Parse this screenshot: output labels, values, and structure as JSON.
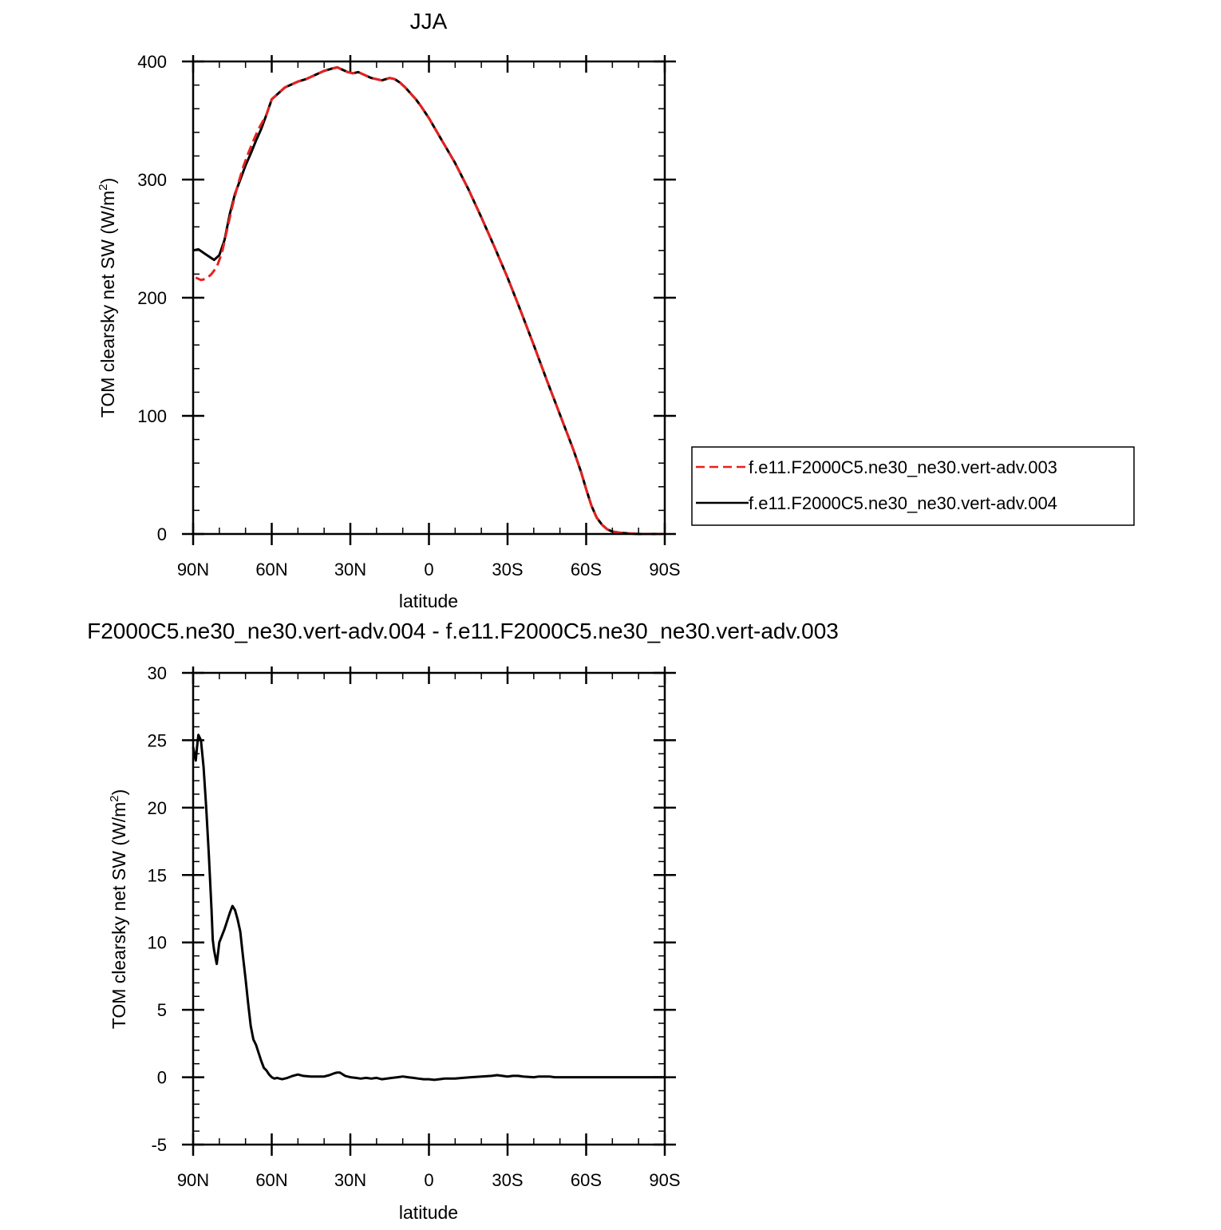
{
  "chart_data": [
    {
      "type": "line",
      "title": "JJA",
      "xlabel": "latitude",
      "ylabel_main": "TOM clearsky net SW (W/m",
      "ylabel_sup": "2",
      "ylabel_close": ")",
      "xlim": [
        90,
        -90
      ],
      "ylim": [
        0,
        400
      ],
      "x_ticks": [
        90,
        60,
        30,
        0,
        -30,
        -60,
        -90
      ],
      "x_tick_labels": [
        "90N",
        "60N",
        "30N",
        "0",
        "30S",
        "60S",
        "90S"
      ],
      "y_ticks": [
        0,
        100,
        200,
        300,
        400
      ],
      "y_tick_labels": [
        "0",
        "100",
        "200",
        "300",
        "400"
      ],
      "grid": false,
      "legend_position": "right",
      "series": [
        {
          "name": "f.e11.F2000C5.ne30_ne30.vert-adv.003",
          "color": "#e8201e",
          "dash": "dashed",
          "x": [
            89,
            87,
            85,
            83,
            81,
            79,
            77,
            75,
            73,
            71,
            69,
            67,
            65,
            62,
            60,
            57,
            55,
            52,
            50,
            47,
            45,
            42,
            40,
            37,
            35,
            33,
            31,
            29,
            27,
            25,
            22,
            20,
            18,
            15,
            13,
            11,
            9,
            7,
            5,
            3,
            0,
            -5,
            -10,
            -15,
            -20,
            -25,
            -30,
            -35,
            -40,
            -45,
            -50,
            -55,
            -58,
            -60,
            -62,
            -64,
            -66,
            -68,
            -70,
            -73,
            -76,
            -80,
            -85,
            -89
          ],
          "y": [
            217,
            215,
            216,
            220,
            226,
            238,
            258,
            278,
            295,
            310,
            322,
            333,
            343,
            355,
            368,
            374,
            378,
            381,
            383,
            385,
            387,
            390,
            392,
            394,
            395,
            393,
            391,
            390,
            391,
            389,
            386,
            385,
            384,
            386,
            385,
            382,
            378,
            373,
            368,
            362,
            352,
            333,
            314,
            292,
            268,
            243,
            217,
            189,
            160,
            130,
            101,
            72,
            53,
            38,
            24,
            14,
            8,
            4,
            2,
            1,
            0.5,
            0,
            0,
            0
          ]
        },
        {
          "name": "f.e11.F2000C5.ne30_ne30.vert-adv.004",
          "color": "#000000",
          "dash": "solid",
          "x": [
            90,
            88,
            86,
            84,
            82,
            80,
            78,
            76,
            74,
            72,
            70,
            68,
            66,
            64,
            62,
            60,
            57,
            55,
            52,
            50,
            47,
            45,
            42,
            40,
            37,
            35,
            33,
            31,
            29,
            27,
            25,
            22,
            20,
            18,
            15,
            13,
            11,
            9,
            7,
            5,
            3,
            0,
            -5,
            -10,
            -15,
            -20,
            -25,
            -30,
            -35,
            -40,
            -45,
            -50,
            -55,
            -58,
            -60,
            -62,
            -64,
            -66,
            -68,
            -70,
            -73,
            -76,
            -80,
            -85,
            -89
          ],
          "y": [
            240,
            241,
            238,
            235,
            232,
            236,
            249,
            271,
            288,
            300,
            312,
            322,
            333,
            343,
            355,
            368,
            374,
            378,
            381,
            383,
            385,
            387,
            390,
            392,
            394,
            395,
            393,
            391,
            390,
            391,
            389,
            386,
            385,
            384,
            386,
            385,
            382,
            378,
            373,
            368,
            362,
            352,
            333,
            314,
            292,
            268,
            243,
            217,
            189,
            160,
            130,
            101,
            72,
            53,
            38,
            24,
            14,
            8,
            4,
            2,
            1,
            0.5,
            0,
            0,
            0
          ]
        }
      ]
    },
    {
      "type": "line",
      "title": "F2000C5.ne30_ne30.vert-adv.004 - f.e11.F2000C5.ne30_ne30.vert-adv.003",
      "xlabel": "latitude",
      "ylabel_main": "TOM clearsky net SW (W/m",
      "ylabel_sup": "2",
      "ylabel_close": ")",
      "xlim": [
        90,
        -90
      ],
      "ylim": [
        -5,
        30
      ],
      "x_ticks": [
        90,
        60,
        30,
        0,
        -30,
        -60,
        -90
      ],
      "x_tick_labels": [
        "90N",
        "60N",
        "30N",
        "0",
        "30S",
        "60S",
        "90S"
      ],
      "y_ticks": [
        -5,
        0,
        5,
        10,
        15,
        20,
        25,
        30
      ],
      "y_tick_labels": [
        "-5",
        "0",
        "5",
        "10",
        "15",
        "20",
        "25",
        "30"
      ],
      "grid": false,
      "series": [
        {
          "color": "#000000",
          "dash": "solid",
          "x": [
            90,
            89.5,
            89,
            88.5,
            88,
            87,
            86,
            85,
            84,
            83,
            82.5,
            82,
            81,
            80,
            79,
            78,
            77,
            76,
            75,
            74,
            73,
            72,
            71,
            70,
            69,
            68,
            67,
            66,
            65,
            64,
            63,
            62,
            61,
            60,
            59,
            58,
            57,
            56,
            54,
            52,
            50,
            48,
            45,
            42,
            40,
            38,
            36,
            35,
            34,
            32,
            30,
            28,
            26,
            24,
            22,
            20,
            18,
            16,
            14,
            12,
            10,
            8,
            6,
            4,
            2,
            0,
            -2,
            -4,
            -6,
            -8,
            -10,
            -13,
            -16,
            -20,
            -24,
            -26,
            -28,
            -30,
            -32,
            -34,
            -36,
            -40,
            -42,
            -44,
            -46,
            -48,
            -50,
            -55,
            -60,
            -70,
            -80,
            -90
          ],
          "y": [
            24.5,
            24,
            23.5,
            24.5,
            25.4,
            25,
            23,
            20,
            16.5,
            12.5,
            10.2,
            9.4,
            8.4,
            10,
            10.5,
            11,
            11.6,
            12.2,
            12.7,
            12.4,
            11.7,
            10.8,
            9,
            7.3,
            5.5,
            3.8,
            2.8,
            2.4,
            1.8,
            1.2,
            0.7,
            0.5,
            0.2,
            0,
            -0.1,
            -0.05,
            -0.1,
            -0.15,
            -0.05,
            0.1,
            0.2,
            0.1,
            0.05,
            0.05,
            0.05,
            0.15,
            0.3,
            0.35,
            0.35,
            0.1,
            0,
            -0.05,
            -0.1,
            -0.05,
            -0.1,
            -0.05,
            -0.15,
            -0.1,
            -0.05,
            0,
            0.05,
            0,
            -0.05,
            -0.1,
            -0.15,
            -0.15,
            -0.2,
            -0.15,
            -0.1,
            -0.1,
            -0.1,
            -0.05,
            0,
            0.05,
            0.1,
            0.15,
            0.1,
            0.05,
            0.1,
            0.1,
            0.05,
            0,
            0.05,
            0.05,
            0.05,
            0,
            0,
            0,
            0,
            0,
            0,
            0
          ]
        }
      ]
    }
  ]
}
